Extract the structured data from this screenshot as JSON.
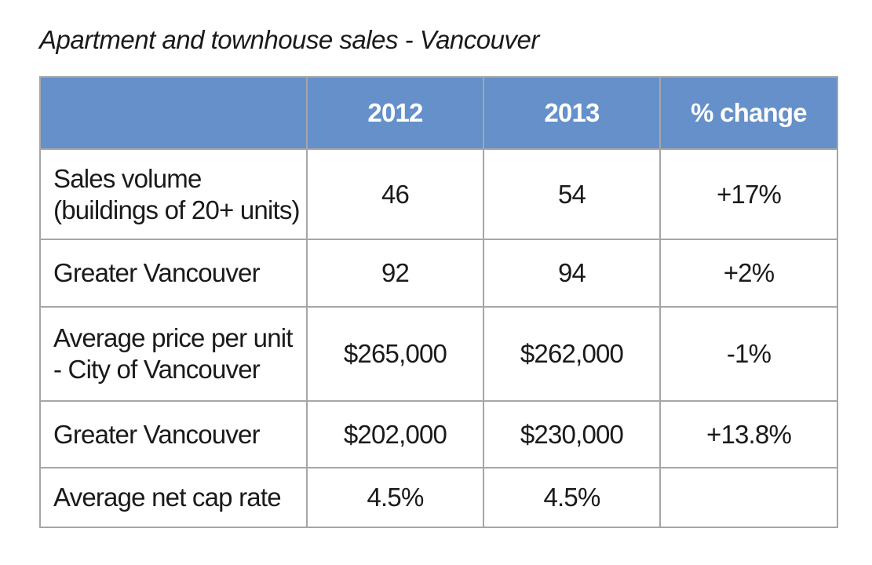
{
  "title": "Apartment and townhouse sales - Vancouver",
  "table": {
    "headers": [
      "",
      "2012",
      "2013",
      "% change"
    ],
    "rows": [
      {
        "label_lines": [
          "Sales volume",
          "(buildings of 20+ units)"
        ],
        "v2012": "46",
        "v2013": "54",
        "change": "+17%"
      },
      {
        "label_lines": [
          "Greater Vancouver"
        ],
        "v2012": "92",
        "v2013": "94",
        "change": "+2%"
      },
      {
        "label_lines": [
          "Average price per unit",
          "- City of Vancouver"
        ],
        "v2012": "$265,000",
        "v2013": "$262,000",
        "change": "-1%"
      },
      {
        "label_lines": [
          "Greater Vancouver"
        ],
        "v2012": "$202,000",
        "v2013": "$230,000",
        "change": "+13.8%"
      },
      {
        "label_lines": [
          "Average net cap rate"
        ],
        "v2012": "4.5%",
        "v2013": "4.5%",
        "change": ""
      }
    ]
  },
  "colors": {
    "header_background": "#6590c9",
    "header_text": "#ffffff",
    "grid_lines": "#a6a6a6"
  }
}
